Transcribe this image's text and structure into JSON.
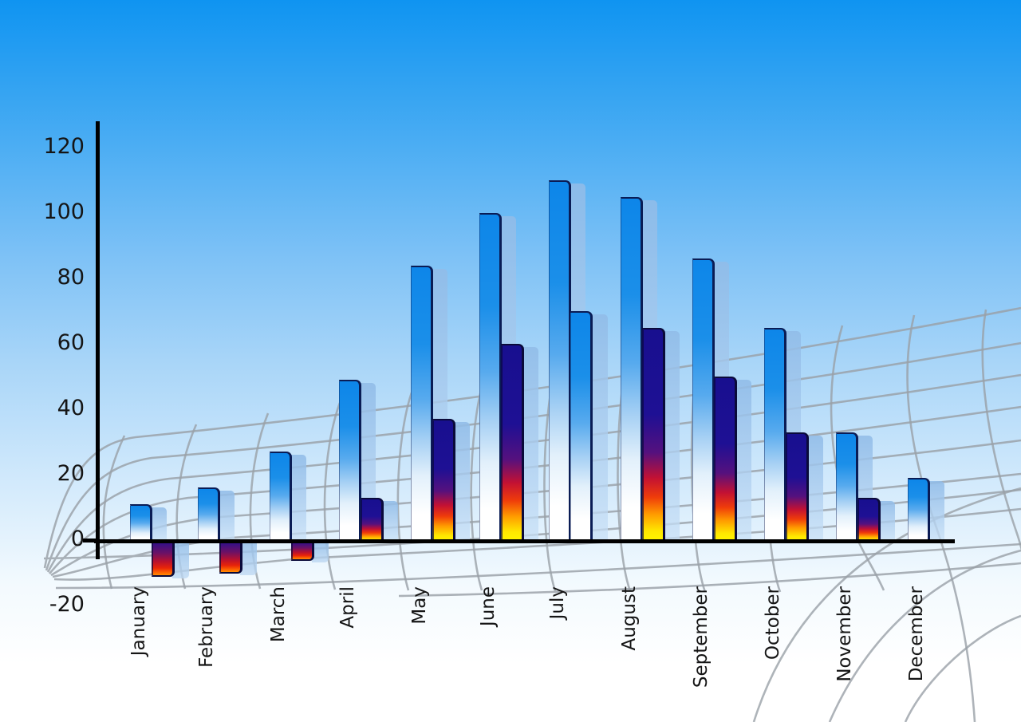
{
  "chart_data": {
    "type": "bar",
    "title": "",
    "xlabel": "",
    "ylabel": "",
    "legend": "none",
    "grid": "decorative curved gray mesh in background",
    "categories": [
      "January",
      "February",
      "March",
      "April",
      "May",
      "June",
      "July",
      "August",
      "September",
      "October",
      "November",
      "December"
    ],
    "series": [
      {
        "name": "blue-gradient-bars",
        "values": [
          11,
          16,
          27,
          49,
          84,
          100,
          110,
          105,
          86,
          65,
          33,
          19
        ]
      },
      {
        "name": "flame-gradient-bars",
        "values": [
          -10,
          -9,
          -5,
          13,
          37,
          60,
          70,
          65,
          50,
          33,
          13,
          null
        ]
      }
    ],
    "series_notes": {
      "july_second_bar_style": "blue-gradient",
      "december_second_bar": "absent",
      "shadow_echo": "each bar has translucent light-blue echo offset right"
    },
    "y_ticks": [
      120,
      100,
      80,
      60,
      40,
      20,
      0,
      -20
    ],
    "ylim": [
      -20,
      120
    ],
    "colors": {
      "background_top": "#0f94f1",
      "background_bottom": "#ffffff",
      "bar_blue_top": "#0d86e9",
      "bar_blue_bottom": "#ffffff",
      "flame_navy": "#1e1094",
      "flame_red": "#e61111",
      "flame_yellow": "#fff700",
      "negative_orange": "#ff8c00",
      "echo_blue": "#a9c9ec",
      "bar_edge": "#0a1c55",
      "axis": "#000000",
      "grid_line": "#9aa1a8",
      "label_text": "#151515"
    }
  }
}
